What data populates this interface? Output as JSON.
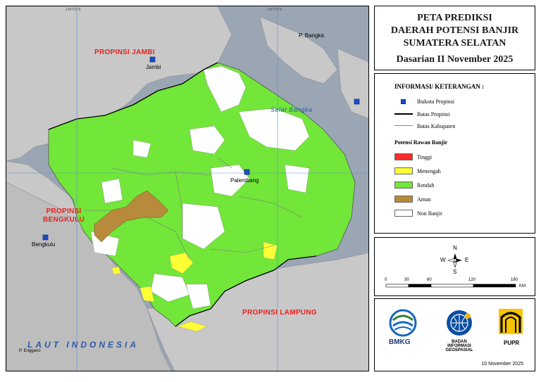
{
  "map": {
    "provinces": {
      "jambi": "PROPINSI JAMBI",
      "bengkulu_line1": "PROPINSI",
      "bengkulu_line2": "BENGKULU",
      "lampung": "PROPINSI LAMPUNG"
    },
    "cities": {
      "jambi": "Jambi",
      "palembang": "Palembang",
      "bengkulu": "Bengkulu"
    },
    "islands": {
      "bangka": "P. Bangka",
      "enggano": "P. Enggano"
    },
    "waters": {
      "laut_indonesia": "LAUT INDONESIA",
      "selat_bangka": "Selat Bangka"
    },
    "ticks": {
      "top_left": "104°0'0\"E",
      "top_right": "106°0'0\"E",
      "left": "3°0'0\"S",
      "right": "3°0'0\"S"
    }
  },
  "title": {
    "line1": "PETA PREDIKSI",
    "line2": "DAERAH POTENSI BANJIR",
    "line3": "SUMATERA SELATAN",
    "period": "Dasarian II November 2025"
  },
  "legend": {
    "heading": "INFORMASI/ KETERANGAN :",
    "symbols": [
      {
        "label": "Ibukota Propinsi"
      },
      {
        "label": "Batas Propinsi"
      },
      {
        "label": "Batas Kabupaten"
      }
    ],
    "risk_heading": "Potensi Rawan Banjir",
    "classes": [
      {
        "label": "Tinggi",
        "color": "#ff2a2a"
      },
      {
        "label": "Menengah",
        "color": "#ffff33"
      },
      {
        "label": "Rendah",
        "color": "#72e639"
      },
      {
        "label": "Aman",
        "color": "#b78a3c"
      },
      {
        "label": "Non Banjir",
        "color": "#ffffff"
      }
    ]
  },
  "compass": {
    "n": "N",
    "s": "S",
    "e": "E",
    "w": "W",
    "scale_ticks": [
      "0",
      "30",
      "60",
      "120",
      "180"
    ],
    "scale_unit": "KM"
  },
  "logos": {
    "bmkg": "BMKG",
    "big_line1": "BADAN INFORMASI",
    "big_line2": "GEOSPASIAL",
    "pupr": "PUPR"
  },
  "date": "10 November 2025"
}
